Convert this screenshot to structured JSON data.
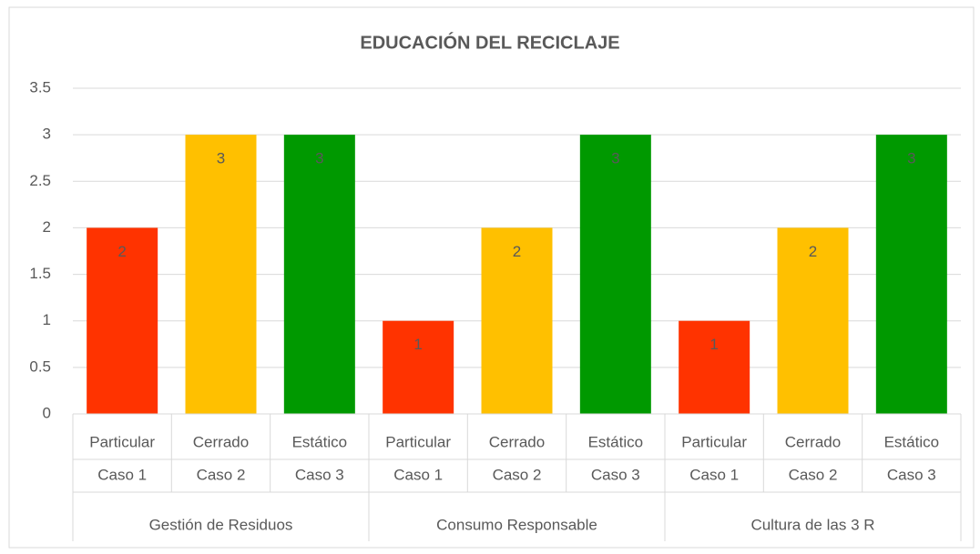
{
  "chart_data": {
    "type": "bar",
    "title": "EDUCACIÓN DEL RECICLAJE",
    "categories": [
      "Particular",
      "Cerrado",
      "Estático",
      "Particular",
      "Cerrado",
      "Estático",
      "Particular",
      "Cerrado",
      "Estático"
    ],
    "subcategories": [
      "Caso 1",
      "Caso 2",
      "Caso 3",
      "Caso 1",
      "Caso 2",
      "Caso 3",
      "Caso 1",
      "Caso 2",
      "Caso 3"
    ],
    "groups": [
      "Gestión de Residuos",
      "Consumo Responsable",
      "Cultura de las 3 R"
    ],
    "values": [
      2,
      3,
      3,
      1,
      2,
      3,
      1,
      2,
      3
    ],
    "colors": [
      "#ff3300",
      "#ffc000",
      "#009900",
      "#ff3300",
      "#ffc000",
      "#009900",
      "#ff3300",
      "#ffc000",
      "#009900"
    ],
    "ylim": [
      0,
      3.5
    ],
    "yticks": [
      0,
      0.5,
      1,
      1.5,
      2,
      2.5,
      3,
      3.5
    ],
    "grid": true
  }
}
